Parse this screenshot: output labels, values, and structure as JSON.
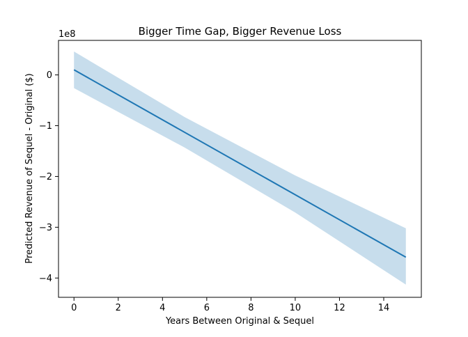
{
  "chart_data": {
    "type": "line",
    "title": "Bigger Time Gap, Bigger Revenue Loss",
    "xlabel": "Years Between Original & Sequel",
    "ylabel": "Predicted Revenue of Sequel - Original ($)",
    "y_offset_label": "1e8",
    "xlim": [
      -0.7,
      15.7
    ],
    "ylim": [
      -4.38,
      0.68
    ],
    "x_ticks": [
      0,
      2,
      4,
      6,
      8,
      10,
      12,
      14
    ],
    "x_tick_labels": [
      "0",
      "2",
      "4",
      "6",
      "8",
      "10",
      "12",
      "14"
    ],
    "y_ticks": [
      0,
      -1,
      -2,
      -3,
      -4
    ],
    "y_tick_labels": [
      "0",
      "−1",
      "−2",
      "−3",
      "−4"
    ],
    "grid": false,
    "series": [
      {
        "x": [
          0,
          15
        ],
        "values": [
          0.1,
          -3.59
        ],
        "color": "#1f77b4"
      }
    ],
    "band": {
      "x": [
        0,
        5,
        10,
        15
      ],
      "upper": [
        0.46,
        -0.83,
        -1.98,
        -3.02
      ],
      "lower": [
        -0.26,
        -1.43,
        -2.71,
        -4.13
      ],
      "color": "#1f77b4",
      "opacity": 0.25
    }
  }
}
